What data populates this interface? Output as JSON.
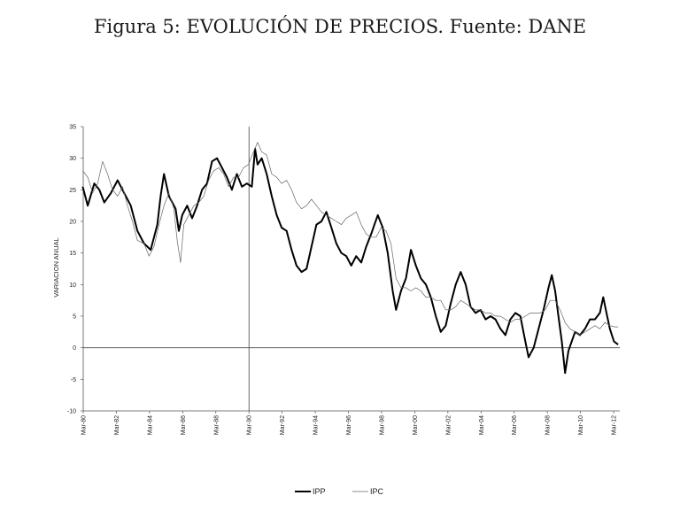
{
  "title": "Figura 5: EVOLUCIÓN DE PRECIOS. Fuente: DANE",
  "chart_data": {
    "type": "line",
    "title": "Figura 5: EVOLUCIÓN DE PRECIOS. Fuente: DANE",
    "ylabel": "VARIACION ANUAL",
    "xlabel": "",
    "ylim": [
      -10,
      35
    ],
    "yticks": [
      -10,
      -5,
      0,
      5,
      10,
      15,
      20,
      25,
      30,
      35
    ],
    "xlim": [
      1980.33,
      2012.7
    ],
    "xticks": [
      {
        "x": 1980.33,
        "label": "Mar-80"
      },
      {
        "x": 1982.33,
        "label": "Mar-82"
      },
      {
        "x": 1984.33,
        "label": "Mar-84"
      },
      {
        "x": 1986.33,
        "label": "Mar-86"
      },
      {
        "x": 1988.33,
        "label": "Mar-88"
      },
      {
        "x": 1990.33,
        "label": "Mar-90"
      },
      {
        "x": 1992.33,
        "label": "Mar-92"
      },
      {
        "x": 1994.33,
        "label": "Mar-94"
      },
      {
        "x": 1996.33,
        "label": "Mar-96"
      },
      {
        "x": 1998.33,
        "label": "Mar-98"
      },
      {
        "x": 2000.33,
        "label": "Mar-00"
      },
      {
        "x": 2002.33,
        "label": "Mar-02"
      },
      {
        "x": 2004.33,
        "label": "Mar-04"
      },
      {
        "x": 2006.33,
        "label": "Mar-06"
      },
      {
        "x": 2008.33,
        "label": "Mar-08"
      },
      {
        "x": 2010.33,
        "label": "Mar-10"
      },
      {
        "x": 2012.33,
        "label": "Mar-12"
      }
    ],
    "reference_lines": [
      {
        "axis": "x",
        "value": 1990.33
      },
      {
        "axis": "y",
        "value": 0
      }
    ],
    "legend_position": "bottom",
    "series": [
      {
        "name": "IPP",
        "color": "#000000",
        "points": [
          [
            1980.3,
            25.5
          ],
          [
            1980.6,
            22.5
          ],
          [
            1981.0,
            26.0
          ],
          [
            1981.3,
            25.0
          ],
          [
            1981.6,
            23.0
          ],
          [
            1982.0,
            24.5
          ],
          [
            1982.4,
            26.5
          ],
          [
            1982.8,
            24.5
          ],
          [
            1983.2,
            22.5
          ],
          [
            1983.6,
            18.5
          ],
          [
            1984.0,
            16.5
          ],
          [
            1984.4,
            15.5
          ],
          [
            1984.8,
            19.5
          ],
          [
            1985.0,
            24.0
          ],
          [
            1985.2,
            27.5
          ],
          [
            1985.5,
            24.0
          ],
          [
            1985.9,
            22.0
          ],
          [
            1986.1,
            18.5
          ],
          [
            1986.3,
            21.0
          ],
          [
            1986.6,
            22.5
          ],
          [
            1986.9,
            20.5
          ],
          [
            1987.2,
            22.5
          ],
          [
            1987.5,
            25.0
          ],
          [
            1987.8,
            26.0
          ],
          [
            1988.1,
            29.5
          ],
          [
            1988.4,
            30.0
          ],
          [
            1988.7,
            28.5
          ],
          [
            1989.0,
            27.0
          ],
          [
            1989.3,
            25.0
          ],
          [
            1989.6,
            27.5
          ],
          [
            1989.9,
            25.5
          ],
          [
            1990.2,
            26.0
          ],
          [
            1990.5,
            25.5
          ],
          [
            1990.7,
            31.5
          ],
          [
            1990.85,
            29.0
          ],
          [
            1991.1,
            30.0
          ],
          [
            1991.4,
            27.5
          ],
          [
            1991.7,
            24.0
          ],
          [
            1992.0,
            21.0
          ],
          [
            1992.3,
            19.0
          ],
          [
            1992.6,
            18.5
          ],
          [
            1992.9,
            15.5
          ],
          [
            1993.2,
            13.0
          ],
          [
            1993.5,
            12.0
          ],
          [
            1993.8,
            12.5
          ],
          [
            1994.1,
            16.0
          ],
          [
            1994.4,
            19.5
          ],
          [
            1994.7,
            20.0
          ],
          [
            1995.0,
            21.5
          ],
          [
            1995.3,
            19.0
          ],
          [
            1995.6,
            16.5
          ],
          [
            1995.9,
            15.0
          ],
          [
            1996.2,
            14.5
          ],
          [
            1996.5,
            13.0
          ],
          [
            1996.8,
            14.5
          ],
          [
            1997.1,
            13.5
          ],
          [
            1997.4,
            16.0
          ],
          [
            1997.7,
            18.0
          ],
          [
            1997.9,
            19.5
          ],
          [
            1998.1,
            21.0
          ],
          [
            1998.4,
            19.0
          ],
          [
            1998.7,
            15.0
          ],
          [
            1999.0,
            9.0
          ],
          [
            1999.2,
            6.0
          ],
          [
            1999.5,
            9.0
          ],
          [
            1999.8,
            11.0
          ],
          [
            2000.1,
            15.5
          ],
          [
            2000.4,
            13.0
          ],
          [
            2000.7,
            11.0
          ],
          [
            2001.0,
            10.0
          ],
          [
            2001.3,
            8.0
          ],
          [
            2001.6,
            5.0
          ],
          [
            2001.9,
            2.5
          ],
          [
            2002.2,
            3.5
          ],
          [
            2002.5,
            7.0
          ],
          [
            2002.8,
            10.0
          ],
          [
            2003.1,
            12.0
          ],
          [
            2003.4,
            10.0
          ],
          [
            2003.7,
            6.5
          ],
          [
            2004.0,
            5.5
          ],
          [
            2004.3,
            6.0
          ],
          [
            2004.6,
            4.5
          ],
          [
            2004.9,
            5.0
          ],
          [
            2005.2,
            4.5
          ],
          [
            2005.5,
            3.0
          ],
          [
            2005.8,
            2.0
          ],
          [
            2006.1,
            4.5
          ],
          [
            2006.4,
            5.5
          ],
          [
            2006.7,
            5.0
          ],
          [
            2007.0,
            1.0
          ],
          [
            2007.2,
            -1.5
          ],
          [
            2007.5,
            0.0
          ],
          [
            2007.8,
            3.0
          ],
          [
            2008.1,
            6.0
          ],
          [
            2008.4,
            9.5
          ],
          [
            2008.6,
            11.5
          ],
          [
            2008.8,
            9.0
          ],
          [
            2009.0,
            5.0
          ],
          [
            2009.2,
            1.0
          ],
          [
            2009.4,
            -4.0
          ],
          [
            2009.6,
            -0.5
          ],
          [
            2009.8,
            1.0
          ],
          [
            2010.0,
            2.5
          ],
          [
            2010.3,
            2.0
          ],
          [
            2010.6,
            3.0
          ],
          [
            2010.9,
            4.5
          ],
          [
            2011.2,
            4.5
          ],
          [
            2011.5,
            5.5
          ],
          [
            2011.7,
            8.0
          ],
          [
            2011.9,
            5.5
          ],
          [
            2012.1,
            3.0
          ],
          [
            2012.35,
            1.0
          ],
          [
            2012.6,
            0.5
          ]
        ]
      },
      {
        "name": "IPC",
        "color": "#666666",
        "points": [
          [
            1980.3,
            28.0
          ],
          [
            1980.6,
            27.0
          ],
          [
            1980.9,
            24.5
          ],
          [
            1981.2,
            26.0
          ],
          [
            1981.5,
            29.5
          ],
          [
            1981.8,
            27.5
          ],
          [
            1982.1,
            25.0
          ],
          [
            1982.4,
            24.0
          ],
          [
            1982.7,
            25.5
          ],
          [
            1983.0,
            22.5
          ],
          [
            1983.3,
            20.0
          ],
          [
            1983.6,
            17.0
          ],
          [
            1984.0,
            16.5
          ],
          [
            1984.3,
            14.5
          ],
          [
            1984.6,
            16.0
          ],
          [
            1984.9,
            19.5
          ],
          [
            1985.2,
            22.5
          ],
          [
            1985.5,
            24.5
          ],
          [
            1985.8,
            22.0
          ],
          [
            1986.0,
            17.0
          ],
          [
            1986.2,
            13.5
          ],
          [
            1986.4,
            19.5
          ],
          [
            1986.7,
            21.0
          ],
          [
            1987.0,
            22.5
          ],
          [
            1987.3,
            23.0
          ],
          [
            1987.6,
            24.0
          ],
          [
            1987.9,
            26.5
          ],
          [
            1988.2,
            28.0
          ],
          [
            1988.5,
            28.5
          ],
          [
            1988.8,
            27.5
          ],
          [
            1989.1,
            25.5
          ],
          [
            1989.4,
            27.0
          ],
          [
            1989.7,
            27.0
          ],
          [
            1990.0,
            28.5
          ],
          [
            1990.3,
            29.0
          ],
          [
            1990.6,
            31.0
          ],
          [
            1990.85,
            32.5
          ],
          [
            1991.1,
            31.0
          ],
          [
            1991.4,
            30.5
          ],
          [
            1991.7,
            27.5
          ],
          [
            1992.0,
            27.0
          ],
          [
            1992.3,
            26.0
          ],
          [
            1992.6,
            26.5
          ],
          [
            1992.9,
            25.0
          ],
          [
            1993.2,
            23.0
          ],
          [
            1993.5,
            22.0
          ],
          [
            1993.8,
            22.5
          ],
          [
            1994.1,
            23.5
          ],
          [
            1994.4,
            22.5
          ],
          [
            1994.7,
            21.5
          ],
          [
            1995.0,
            21.0
          ],
          [
            1995.3,
            20.5
          ],
          [
            1995.6,
            20.0
          ],
          [
            1995.9,
            19.5
          ],
          [
            1996.2,
            20.5
          ],
          [
            1996.5,
            21.0
          ],
          [
            1996.8,
            21.5
          ],
          [
            1997.1,
            19.5
          ],
          [
            1997.4,
            18.0
          ],
          [
            1997.7,
            17.5
          ],
          [
            1998.0,
            17.5
          ],
          [
            1998.3,
            19.0
          ],
          [
            1998.6,
            18.5
          ],
          [
            1998.9,
            16.5
          ],
          [
            1999.2,
            11.0
          ],
          [
            1999.5,
            9.5
          ],
          [
            1999.8,
            9.5
          ],
          [
            2000.1,
            9.0
          ],
          [
            2000.4,
            9.5
          ],
          [
            2000.7,
            9.0
          ],
          [
            2001.0,
            8.0
          ],
          [
            2001.3,
            8.0
          ],
          [
            2001.6,
            7.5
          ],
          [
            2001.9,
            7.5
          ],
          [
            2002.2,
            6.0
          ],
          [
            2002.5,
            6.0
          ],
          [
            2002.8,
            6.5
          ],
          [
            2003.1,
            7.5
          ],
          [
            2003.4,
            7.0
          ],
          [
            2003.7,
            6.5
          ],
          [
            2004.0,
            6.0
          ],
          [
            2004.3,
            6.0
          ],
          [
            2004.6,
            5.5
          ],
          [
            2004.9,
            5.5
          ],
          [
            2005.2,
            5.0
          ],
          [
            2005.5,
            5.0
          ],
          [
            2005.8,
            4.5
          ],
          [
            2006.1,
            4.0
          ],
          [
            2006.4,
            4.5
          ],
          [
            2006.7,
            4.5
          ],
          [
            2007.0,
            5.0
          ],
          [
            2007.3,
            5.5
          ],
          [
            2007.6,
            5.5
          ],
          [
            2007.9,
            5.5
          ],
          [
            2008.2,
            6.0
          ],
          [
            2008.5,
            7.5
          ],
          [
            2008.8,
            7.5
          ],
          [
            2009.1,
            6.0
          ],
          [
            2009.4,
            4.0
          ],
          [
            2009.7,
            3.0
          ],
          [
            2010.0,
            2.5
          ],
          [
            2010.3,
            2.0
          ],
          [
            2010.6,
            2.5
          ],
          [
            2010.9,
            3.0
          ],
          [
            2011.2,
            3.5
          ],
          [
            2011.5,
            3.0
          ],
          [
            2011.8,
            4.0
          ],
          [
            2012.1,
            3.5
          ],
          [
            2012.4,
            3.3
          ],
          [
            2012.6,
            3.3
          ]
        ]
      }
    ]
  }
}
